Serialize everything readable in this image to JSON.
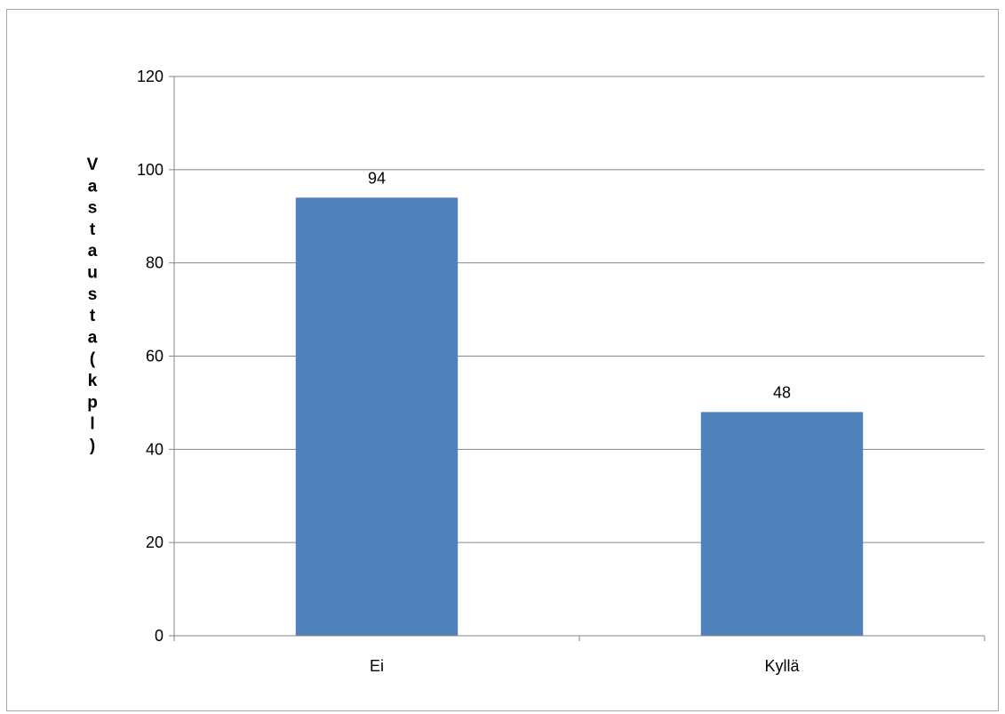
{
  "chart_data": {
    "type": "bar",
    "title": "",
    "xlabel": "",
    "ylabel": "Vastausta (kpl)",
    "categories": [
      "Ei",
      "Kyllä"
    ],
    "values": [
      94,
      48
    ],
    "data_labels": [
      "94",
      "48"
    ],
    "y_ticks": [
      "0",
      "20",
      "40",
      "60",
      "80",
      "100",
      "120"
    ],
    "ylim": [
      0,
      120
    ],
    "grid": true,
    "legend": "none",
    "bar_color": "#4f81bd",
    "grid_color": "#868686"
  }
}
